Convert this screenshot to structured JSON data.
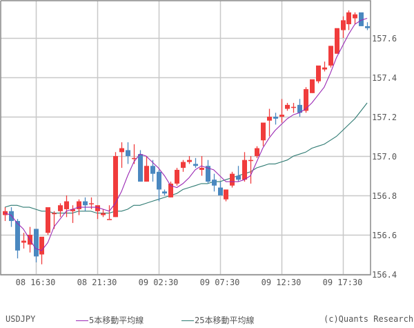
{
  "symbol": "USDJPY",
  "legend": {
    "symbol_label": "USDJPY",
    "ma5_label": "5本移動平均線",
    "ma25_label": "25本移動平均線",
    "copyright": "(c)Quants Research"
  },
  "colors": {
    "up": "#f03c3c",
    "down": "#4a88c0",
    "ma5": "#9a28b4",
    "ma25": "#2e7a72",
    "grid": "#c8c8c8",
    "frame": "#888888",
    "text": "#555555"
  },
  "chart_data": {
    "type": "candlestick",
    "title": "USDJPY",
    "interval": "30min",
    "ylabel": "",
    "xlabel": "",
    "ylim": [
      156.4,
      157.8
    ],
    "grid": true,
    "legend_position": "bottom",
    "y_ticks": [
      "156.4",
      "156.6",
      "156.8",
      "157.0",
      "157.2",
      "157.4",
      "157.6"
    ],
    "x_ticks": [
      {
        "label": "08 16:30",
        "index": 5
      },
      {
        "label": "08 21:30",
        "index": 15
      },
      {
        "label": "09 02:30",
        "index": 25
      },
      {
        "label": "09 07:30",
        "index": 35
      },
      {
        "label": "09 12:30",
        "index": 45
      },
      {
        "label": "09 17:30",
        "index": 55
      }
    ],
    "series": [
      {
        "name": "USDJPY",
        "type": "ohlc",
        "values": [
          [
            156.7,
            156.74,
            156.67,
            156.72
          ],
          [
            156.72,
            156.74,
            156.64,
            156.67
          ],
          [
            156.67,
            156.68,
            156.48,
            156.52
          ],
          [
            156.56,
            156.61,
            156.53,
            156.57
          ],
          [
            156.55,
            156.64,
            156.51,
            156.6
          ],
          [
            156.63,
            156.63,
            156.46,
            156.49
          ],
          [
            156.5,
            156.56,
            156.45,
            156.59
          ],
          [
            156.61,
            156.73,
            156.6,
            156.74
          ],
          [
            156.71,
            156.72,
            156.63,
            156.71
          ],
          [
            156.72,
            156.76,
            156.69,
            156.75
          ],
          [
            156.73,
            156.8,
            156.69,
            156.77
          ],
          [
            156.72,
            156.75,
            156.66,
            156.73
          ],
          [
            156.73,
            156.78,
            156.7,
            156.77
          ],
          [
            156.77,
            156.79,
            156.72,
            156.75
          ],
          [
            156.76,
            156.79,
            156.73,
            156.76
          ],
          [
            156.72,
            156.74,
            156.68,
            156.75
          ],
          [
            156.7,
            156.73,
            156.69,
            156.71
          ],
          [
            156.68,
            156.75,
            156.68,
            156.68
          ],
          [
            156.69,
            157.02,
            156.69,
            157.0
          ],
          [
            157.02,
            157.07,
            156.94,
            157.04
          ],
          [
            157.03,
            157.07,
            156.96,
            157.0
          ],
          [
            156.99,
            157.06,
            156.96,
            156.99
          ],
          [
            157.01,
            157.03,
            156.87,
            156.87
          ],
          [
            156.87,
            157.0,
            156.87,
            156.95
          ],
          [
            156.95,
            156.98,
            156.87,
            156.91
          ],
          [
            156.92,
            156.93,
            156.77,
            156.83
          ],
          [
            156.82,
            156.83,
            156.8,
            156.81
          ],
          [
            156.79,
            156.87,
            156.79,
            156.86
          ],
          [
            156.86,
            156.94,
            156.85,
            156.93
          ],
          [
            156.94,
            156.98,
            156.92,
            156.97
          ],
          [
            156.97,
            157.0,
            156.96,
            156.98
          ],
          [
            156.96,
            156.99,
            156.94,
            156.95
          ],
          [
            156.93,
            157.0,
            156.9,
            156.94
          ],
          [
            156.95,
            156.98,
            156.86,
            156.87
          ],
          [
            156.88,
            156.91,
            156.82,
            156.85
          ],
          [
            156.84,
            156.87,
            156.8,
            156.8
          ],
          [
            156.78,
            156.83,
            156.77,
            156.83
          ],
          [
            156.85,
            156.92,
            156.84,
            156.91
          ],
          [
            156.9,
            156.95,
            156.87,
            156.88
          ],
          [
            156.88,
            157.02,
            156.87,
            156.98
          ],
          [
            156.98,
            157.0,
            156.86,
            156.98
          ],
          [
            157.0,
            157.05,
            156.99,
            157.04
          ],
          [
            157.08,
            157.13,
            157.05,
            157.17
          ],
          [
            157.18,
            157.24,
            157.1,
            157.2
          ],
          [
            157.2,
            157.22,
            157.16,
            157.19
          ],
          [
            157.2,
            157.29,
            157.17,
            157.21
          ],
          [
            157.24,
            157.27,
            157.23,
            157.26
          ],
          [
            157.25,
            157.27,
            157.22,
            157.25
          ],
          [
            157.26,
            157.29,
            157.2,
            157.22
          ],
          [
            157.23,
            157.35,
            157.22,
            157.34
          ],
          [
            157.32,
            157.38,
            157.32,
            157.39
          ],
          [
            157.38,
            157.44,
            157.37,
            157.46
          ],
          [
            157.44,
            157.48,
            157.43,
            157.45
          ],
          [
            157.46,
            157.56,
            157.45,
            157.56
          ],
          [
            157.52,
            157.62,
            157.52,
            157.65
          ],
          [
            157.64,
            157.71,
            157.6,
            157.69
          ],
          [
            157.67,
            157.74,
            157.64,
            157.73
          ],
          [
            157.7,
            157.73,
            157.67,
            157.72
          ],
          [
            157.73,
            157.72,
            157.66,
            157.66
          ],
          [
            157.66,
            157.68,
            157.64,
            157.65
          ]
        ]
      },
      {
        "name": "5本移動平均線",
        "type": "line",
        "values": [
          156.71,
          156.7,
          156.66,
          156.63,
          156.58,
          156.53,
          156.52,
          156.56,
          156.64,
          156.68,
          156.72,
          156.73,
          156.74,
          156.74,
          156.74,
          156.74,
          156.73,
          156.72,
          156.76,
          156.82,
          156.9,
          156.97,
          157.01,
          157.0,
          156.97,
          156.94,
          156.9,
          156.85,
          156.84,
          156.86,
          156.89,
          156.93,
          156.95,
          156.94,
          156.93,
          156.9,
          156.87,
          156.87,
          156.87,
          156.88,
          156.9,
          156.97,
          157.04,
          157.09,
          157.13,
          157.16,
          157.19,
          157.21,
          157.22,
          157.24,
          157.27,
          157.31,
          157.35,
          157.42,
          157.5,
          157.56,
          157.62,
          157.67,
          157.69,
          157.7
        ]
      },
      {
        "name": "25本移動平均線",
        "type": "line",
        "values": [
          156.74,
          156.75,
          156.75,
          156.74,
          156.74,
          156.73,
          156.72,
          156.72,
          156.71,
          156.71,
          156.71,
          156.71,
          156.72,
          156.72,
          156.72,
          156.71,
          156.71,
          156.71,
          156.72,
          156.72,
          156.73,
          156.75,
          156.75,
          156.76,
          156.77,
          156.78,
          156.79,
          156.8,
          156.81,
          156.83,
          156.84,
          156.85,
          156.86,
          156.86,
          156.87,
          156.87,
          156.88,
          156.89,
          156.9,
          156.91,
          156.92,
          156.94,
          156.95,
          156.96,
          156.96,
          156.97,
          156.98,
          157.0,
          157.01,
          157.02,
          157.04,
          157.05,
          157.06,
          157.08,
          157.1,
          157.13,
          157.16,
          157.19,
          157.23,
          157.27
        ]
      }
    ]
  }
}
